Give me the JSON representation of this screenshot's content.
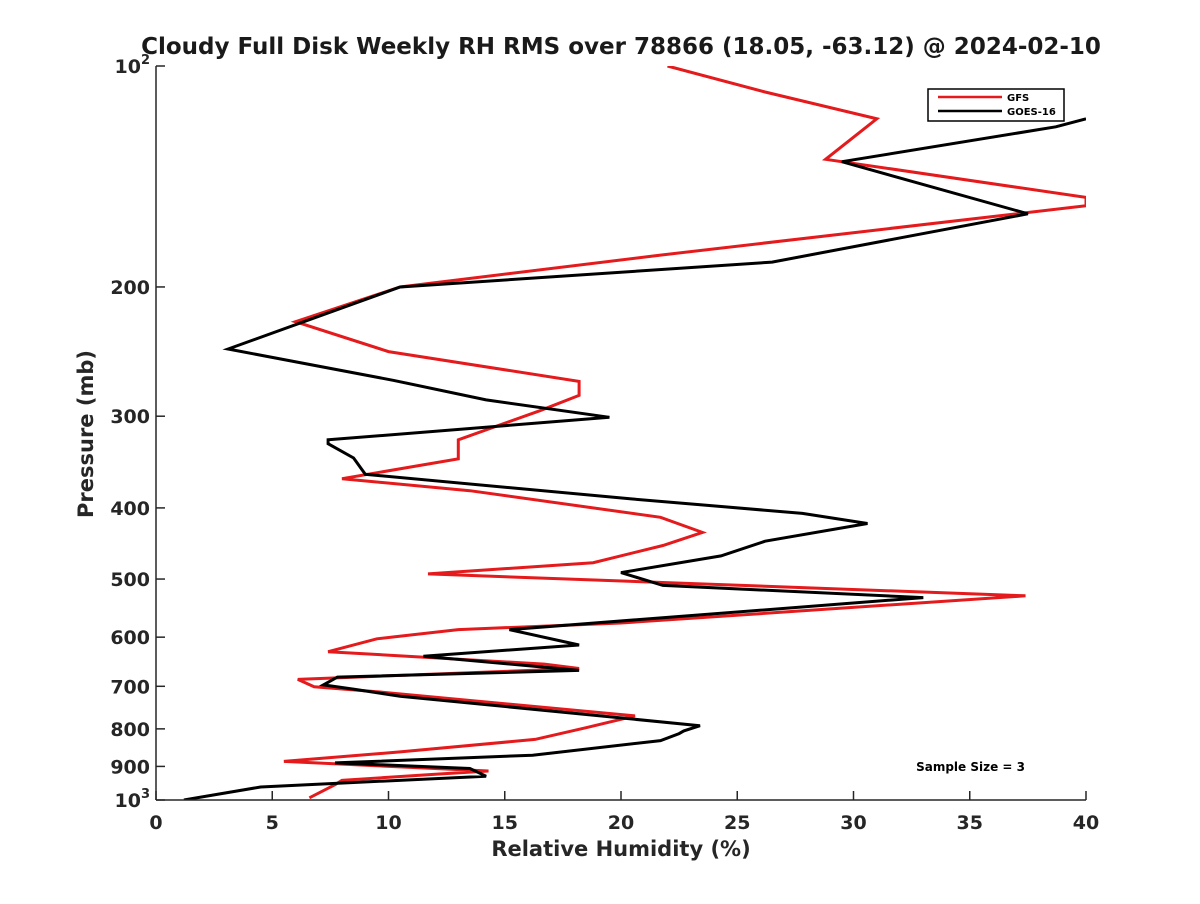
{
  "chart_data": {
    "type": "line",
    "title": "Cloudy Full Disk Weekly RH RMS over 78866 (18.05, -63.12) @ 2024-02-10",
    "xlabel": "Relative Humidity (%)",
    "ylabel": "Pressure (mb)",
    "xlim": [
      0,
      40
    ],
    "ylim": [
      1000,
      100
    ],
    "yscale": "log",
    "xticks": [
      0,
      5,
      10,
      15,
      20,
      25,
      30,
      35,
      40
    ],
    "yticks": [
      {
        "value": 100,
        "base": "10",
        "exp": "2"
      },
      {
        "value": 200,
        "label": "200"
      },
      {
        "value": 300,
        "label": "300"
      },
      {
        "value": 400,
        "label": "400"
      },
      {
        "value": 500,
        "label": "500"
      },
      {
        "value": 600,
        "label": "600"
      },
      {
        "value": 700,
        "label": "700"
      },
      {
        "value": 800,
        "label": "800"
      },
      {
        "value": 900,
        "label": "900"
      },
      {
        "value": 1000,
        "base": "10",
        "exp": "3"
      }
    ],
    "legend_position": "top-right",
    "annotation": "Sample Size = 3",
    "series": [
      {
        "name": "GFS",
        "color": "#e41a1c",
        "points": [
          [
            22,
            100
          ],
          [
            26.2,
            108.5
          ],
          [
            31,
            118
          ],
          [
            28.8,
            134
          ],
          [
            40,
            151
          ],
          [
            40,
            155
          ],
          [
            21.7,
            181
          ],
          [
            10.5,
            200
          ],
          [
            6,
            223
          ],
          [
            10,
            245
          ],
          [
            18.2,
            269
          ],
          [
            18.2,
            281
          ],
          [
            16.5,
            295
          ],
          [
            13,
            323
          ],
          [
            13,
            343
          ],
          [
            8,
            365
          ],
          [
            13.5,
            379
          ],
          [
            21.7,
            412
          ],
          [
            23.5,
            432
          ],
          [
            21.8,
            450
          ],
          [
            18.8,
            475
          ],
          [
            11.7,
            492
          ],
          [
            37.4,
            527
          ],
          [
            20,
            574
          ],
          [
            13,
            586
          ],
          [
            9.5,
            603
          ],
          [
            7.4,
            628
          ],
          [
            16.7,
            653
          ],
          [
            18.2,
            662
          ],
          [
            6.1,
            685
          ],
          [
            6.8,
            701
          ],
          [
            9.5,
            712
          ],
          [
            20.6,
            768
          ],
          [
            18.5,
            797
          ],
          [
            16.3,
            827
          ],
          [
            10.5,
            860
          ],
          [
            5.5,
            886
          ],
          [
            14.3,
            913
          ],
          [
            12.1,
            922
          ],
          [
            8,
            940
          ],
          [
            7.7,
            953
          ],
          [
            6.6,
            993
          ]
        ]
      },
      {
        "name": "GOES-16",
        "color": "#000000",
        "points": [
          [
            40,
            118
          ],
          [
            38.7,
            121
          ],
          [
            29.5,
            135
          ],
          [
            37.5,
            159
          ],
          [
            26.5,
            185
          ],
          [
            10.5,
            200
          ],
          [
            3.1,
            243
          ],
          [
            10.2,
            268
          ],
          [
            14.2,
            285
          ],
          [
            19.5,
            301
          ],
          [
            7.4,
            323
          ],
          [
            7.4,
            327
          ],
          [
            8.5,
            342
          ],
          [
            9,
            360
          ],
          [
            20.5,
            389
          ],
          [
            27.8,
            407
          ],
          [
            30.6,
            420
          ],
          [
            26.2,
            444
          ],
          [
            24.3,
            465
          ],
          [
            20,
            490
          ],
          [
            21.8,
            510
          ],
          [
            33,
            530
          ],
          [
            15.2,
            586
          ],
          [
            18.2,
            615
          ],
          [
            11.5,
            637
          ],
          [
            18.2,
            666
          ],
          [
            7.8,
            680
          ],
          [
            7.2,
            697
          ],
          [
            8.6,
            707
          ],
          [
            10.5,
            722
          ],
          [
            23.4,
            792
          ],
          [
            22.7,
            805
          ],
          [
            22.5,
            812
          ],
          [
            21.7,
            830
          ],
          [
            16.2,
            869
          ],
          [
            7.7,
            890
          ],
          [
            13.5,
            906
          ],
          [
            14.2,
            928
          ],
          [
            4.5,
            960
          ],
          [
            1.2,
            1000
          ]
        ]
      }
    ]
  }
}
